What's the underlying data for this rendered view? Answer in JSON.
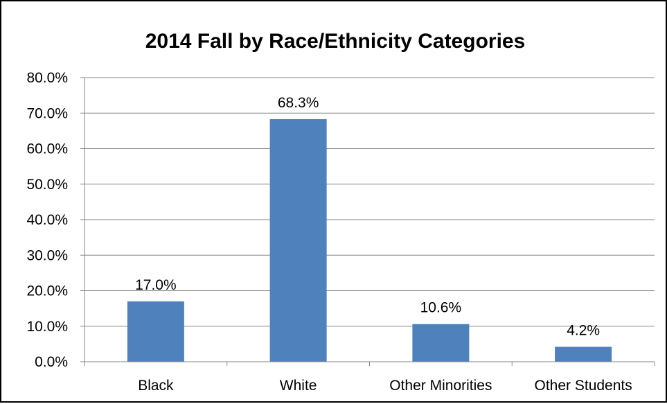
{
  "chart_data": {
    "type": "bar",
    "title": "2014 Fall by Race/Ethnicity Categories",
    "categories": [
      "Black",
      "White",
      "Other Minorities",
      "Other Students"
    ],
    "values": [
      17.0,
      68.3,
      10.6,
      4.2
    ],
    "data_labels": [
      "17.0%",
      "68.3%",
      "10.6%",
      "4.2%"
    ],
    "ylim": [
      0,
      80
    ],
    "yticks": [
      0,
      10,
      20,
      30,
      40,
      50,
      60,
      70,
      80
    ],
    "ytick_labels": [
      "0.0%",
      "10.0%",
      "20.0%",
      "30.0%",
      "40.0%",
      "50.0%",
      "60.0%",
      "70.0%",
      "80.0%"
    ],
    "xlabel": "",
    "ylabel": "",
    "grid": true,
    "bar_color": "#4F81BD",
    "grid_color": "#868686"
  }
}
